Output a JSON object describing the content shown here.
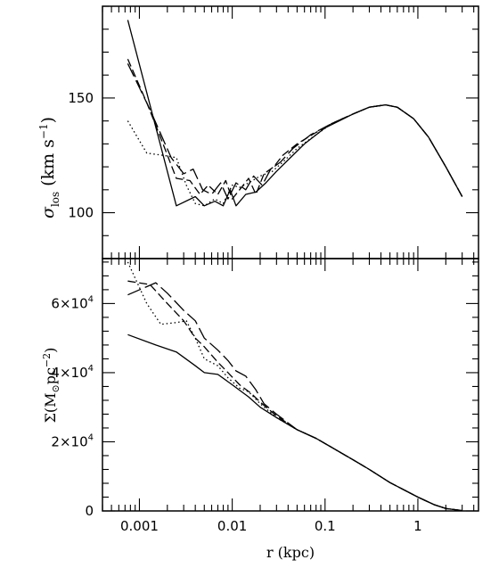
{
  "chart_data": [
    {
      "type": "line",
      "panel": "top",
      "xscale": "log",
      "xlim": [
        0.0004,
        4.5
      ],
      "ylim": [
        80,
        190
      ],
      "ylabel_main": "σ",
      "ylabel_sub": "los",
      "ylabel_units_a": "(km s",
      "ylabel_units_sup": "−1",
      "ylabel_units_b": ")",
      "yticks": [
        {
          "value": 100,
          "label": "100"
        },
        {
          "value": 150,
          "label": "150"
        }
      ],
      "series": [
        {
          "style": "solid",
          "points": [
            [
              0.00075,
              184
            ],
            [
              0.0025,
              103
            ],
            [
              0.004,
              107
            ],
            [
              0.005,
              103
            ],
            [
              0.0065,
              105
            ],
            [
              0.008,
              103
            ],
            [
              0.0095,
              110
            ],
            [
              0.011,
              103
            ],
            [
              0.014,
              108
            ],
            [
              0.018,
              109
            ],
            [
              0.023,
              113
            ],
            [
              0.03,
              118
            ],
            [
              0.04,
              123
            ],
            [
              0.06,
              130
            ],
            [
              0.1,
              137
            ],
            [
              0.2,
              143
            ],
            [
              0.3,
              146
            ],
            [
              0.45,
              147
            ],
            [
              0.6,
              146
            ],
            [
              0.9,
              141
            ],
            [
              1.3,
              133
            ],
            [
              2.0,
              120
            ],
            [
              3.0,
              107
            ]
          ]
        },
        {
          "style": "dashed",
          "points": [
            [
              0.00075,
              167
            ],
            [
              0.0012,
              148
            ],
            [
              0.0018,
              130
            ],
            [
              0.0025,
              115
            ],
            [
              0.0035,
              114
            ],
            [
              0.0045,
              108
            ],
            [
              0.0055,
              112
            ],
            [
              0.007,
              108
            ],
            [
              0.0085,
              114
            ],
            [
              0.01,
              106
            ],
            [
              0.012,
              110
            ],
            [
              0.015,
              115
            ],
            [
              0.018,
              108
            ],
            [
              0.022,
              117
            ],
            [
              0.028,
              120
            ],
            [
              0.035,
              125
            ],
            [
              0.05,
              130
            ],
            [
              0.08,
              135
            ],
            [
              0.12,
              139
            ],
            [
              0.2,
              143
            ],
            [
              0.3,
              146
            ],
            [
              0.45,
              147
            ],
            [
              0.6,
              146
            ],
            [
              0.9,
              141
            ],
            [
              1.3,
              133
            ],
            [
              2.0,
              120
            ],
            [
              3.0,
              107
            ]
          ]
        },
        {
          "style": "longdash",
          "points": [
            [
              0.00075,
              165
            ],
            [
              0.0013,
              145
            ],
            [
              0.0022,
              124
            ],
            [
              0.003,
              117
            ],
            [
              0.0038,
              119
            ],
            [
              0.0048,
              110
            ],
            [
              0.006,
              108
            ],
            [
              0.0075,
              113
            ],
            [
              0.009,
              106
            ],
            [
              0.011,
              113
            ],
            [
              0.014,
              110
            ],
            [
              0.017,
              116
            ],
            [
              0.021,
              112
            ],
            [
              0.026,
              119
            ],
            [
              0.033,
              122
            ],
            [
              0.045,
              128
            ],
            [
              0.07,
              134
            ],
            [
              0.12,
              139
            ],
            [
              0.2,
              143
            ],
            [
              0.3,
              146
            ],
            [
              0.45,
              147
            ],
            [
              0.6,
              146
            ],
            [
              0.9,
              141
            ],
            [
              1.3,
              133
            ],
            [
              2.0,
              120
            ],
            [
              3.0,
              107
            ]
          ]
        },
        {
          "style": "dotted",
          "points": [
            [
              0.00075,
              140
            ],
            [
              0.0012,
              126
            ],
            [
              0.0018,
              125
            ],
            [
              0.0025,
              124
            ],
            [
              0.0032,
              112
            ],
            [
              0.004,
              104
            ],
            [
              0.005,
              103
            ],
            [
              0.0065,
              106
            ],
            [
              0.008,
              104
            ],
            [
              0.01,
              112
            ],
            [
              0.012,
              111
            ],
            [
              0.015,
              113
            ],
            [
              0.02,
              116
            ],
            [
              0.027,
              118
            ],
            [
              0.035,
              122
            ],
            [
              0.05,
              128
            ],
            [
              0.08,
              134
            ],
            [
              0.12,
              139
            ],
            [
              0.2,
              143
            ],
            [
              0.3,
              146
            ],
            [
              0.45,
              147
            ],
            [
              0.6,
              146
            ],
            [
              0.9,
              141
            ],
            [
              1.3,
              133
            ],
            [
              2.0,
              120
            ],
            [
              3.0,
              107
            ]
          ]
        }
      ]
    },
    {
      "type": "line",
      "panel": "bottom",
      "xscale": "log",
      "xlim": [
        0.0004,
        4.5
      ],
      "ylim": [
        0,
        73000
      ],
      "xlabel": "r (kpc)",
      "ylabel": "Σ(M",
      "ylabel_sym": "⊙",
      "ylabel_b": "pc",
      "ylabel_sup": "−2",
      "ylabel_c": ")",
      "xticks": [
        {
          "value": 0.001,
          "label": "0.001"
        },
        {
          "value": 0.01,
          "label": "0.01"
        },
        {
          "value": 0.1,
          "label": "0.1"
        },
        {
          "value": 1,
          "label": "1"
        }
      ],
      "yticks": [
        {
          "value": 0,
          "label": "0",
          "exp": ""
        },
        {
          "value": 20000,
          "label": "2×10",
          "exp": "4"
        },
        {
          "value": 40000,
          "label": "4×10",
          "exp": "4"
        },
        {
          "value": 60000,
          "label": "6×10",
          "exp": "4"
        }
      ],
      "series": [
        {
          "style": "solid",
          "points": [
            [
              0.00075,
              51000
            ],
            [
              0.0015,
              48000
            ],
            [
              0.0025,
              46000
            ],
            [
              0.004,
              42000
            ],
            [
              0.005,
              40000
            ],
            [
              0.007,
              39500
            ],
            [
              0.01,
              36500
            ],
            [
              0.015,
              33000
            ],
            [
              0.02,
              30000
            ],
            [
              0.03,
              27000
            ],
            [
              0.05,
              23500
            ],
            [
              0.08,
              21000
            ],
            [
              0.1,
              19500
            ],
            [
              0.2,
              14800
            ],
            [
              0.3,
              12000
            ],
            [
              0.5,
              8200
            ],
            [
              1.0,
              4000
            ],
            [
              1.5,
              1800
            ],
            [
              2.0,
              700
            ],
            [
              3.0,
              100
            ]
          ]
        },
        {
          "style": "dashed",
          "points": [
            [
              0.00075,
              66500
            ],
            [
              0.0013,
              65500
            ],
            [
              0.002,
              60000
            ],
            [
              0.003,
              55000
            ],
            [
              0.004,
              50000
            ],
            [
              0.005,
              47500
            ],
            [
              0.007,
              43000
            ],
            [
              0.009,
              40000
            ],
            [
              0.012,
              36500
            ],
            [
              0.016,
              34000
            ],
            [
              0.02,
              31500
            ],
            [
              0.03,
              27500
            ],
            [
              0.05,
              23500
            ],
            [
              0.08,
              21000
            ],
            [
              0.1,
              19500
            ],
            [
              0.2,
              14800
            ],
            [
              0.3,
              12000
            ],
            [
              0.5,
              8200
            ],
            [
              1.0,
              4000
            ],
            [
              1.5,
              1800
            ],
            [
              2.0,
              700
            ],
            [
              3.0,
              100
            ]
          ]
        },
        {
          "style": "longdash",
          "points": [
            [
              0.00075,
              62500
            ],
            [
              0.0015,
              66000
            ],
            [
              0.002,
              63000
            ],
            [
              0.003,
              58000
            ],
            [
              0.004,
              55000
            ],
            [
              0.005,
              50000
            ],
            [
              0.007,
              46500
            ],
            [
              0.009,
              43500
            ],
            [
              0.011,
              40500
            ],
            [
              0.014,
              39000
            ],
            [
              0.018,
              35000
            ],
            [
              0.022,
              31000
            ],
            [
              0.03,
              28000
            ],
            [
              0.05,
              23500
            ],
            [
              0.08,
              21000
            ],
            [
              0.1,
              19500
            ],
            [
              0.2,
              14800
            ],
            [
              0.3,
              12000
            ],
            [
              0.5,
              8200
            ],
            [
              1.0,
              4000
            ],
            [
              1.5,
              1800
            ],
            [
              2.0,
              700
            ],
            [
              3.0,
              100
            ]
          ]
        },
        {
          "style": "dotted",
          "points": [
            [
              0.00075,
              72000
            ],
            [
              0.0012,
              60000
            ],
            [
              0.0017,
              54000
            ],
            [
              0.0025,
              54500
            ],
            [
              0.0032,
              55000
            ],
            [
              0.004,
              50000
            ],
            [
              0.005,
              44000
            ],
            [
              0.007,
              42000
            ],
            [
              0.009,
              38500
            ],
            [
              0.012,
              35500
            ],
            [
              0.015,
              34500
            ],
            [
              0.02,
              31000
            ],
            [
              0.03,
              27000
            ],
            [
              0.05,
              23500
            ],
            [
              0.08,
              21000
            ],
            [
              0.1,
              19500
            ],
            [
              0.2,
              14800
            ],
            [
              0.3,
              12000
            ],
            [
              0.5,
              8200
            ],
            [
              1.0,
              4000
            ],
            [
              1.5,
              1800
            ],
            [
              2.0,
              700
            ],
            [
              3.0,
              100
            ]
          ]
        }
      ]
    }
  ]
}
